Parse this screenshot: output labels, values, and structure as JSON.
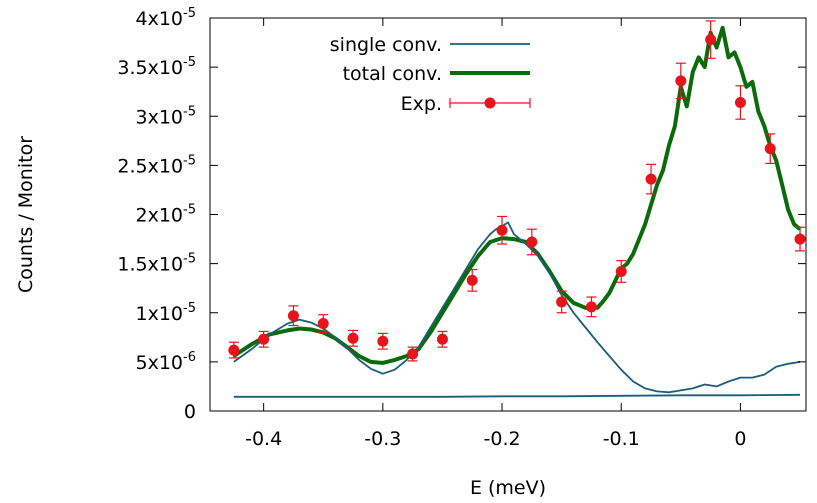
{
  "chart_data": {
    "type": "line",
    "xlabel": "E (meV)",
    "ylabel": "Counts / Monitor",
    "xlim": [
      -0.445,
      0.055
    ],
    "ylim": [
      0,
      4e-05
    ],
    "x_ticks": [
      {
        "value": -0.4,
        "label": "-0.4"
      },
      {
        "value": -0.3,
        "label": "-0.3"
      },
      {
        "value": -0.2,
        "label": "-0.2"
      },
      {
        "value": -0.1,
        "label": "-0.1"
      },
      {
        "value": 0,
        "label": "0"
      }
    ],
    "y_ticks": [
      {
        "value": 0,
        "base": "0",
        "exp": ""
      },
      {
        "value": 5e-06,
        "base": "5x10",
        "exp": "-6"
      },
      {
        "value": 1e-05,
        "base": "1x10",
        "exp": "-5"
      },
      {
        "value": 1.5e-05,
        "base": "1.5x10",
        "exp": "-5"
      },
      {
        "value": 2e-05,
        "base": "2x10",
        "exp": "-5"
      },
      {
        "value": 2.5e-05,
        "base": "2.5x10",
        "exp": "-5"
      },
      {
        "value": 3e-05,
        "base": "3x10",
        "exp": "-5"
      },
      {
        "value": 3.5e-05,
        "base": "3.5x10",
        "exp": "-5"
      },
      {
        "value": 4e-05,
        "base": "4x10",
        "exp": "-5"
      }
    ],
    "grid": false,
    "legend_position": "top-left",
    "series": [
      {
        "name": "single conv.",
        "color": "#1b5e7a",
        "style": "thin-line",
        "x": [
          -0.425,
          -0.41,
          -0.395,
          -0.38,
          -0.37,
          -0.36,
          -0.35,
          -0.34,
          -0.33,
          -0.32,
          -0.31,
          -0.3,
          -0.29,
          -0.28,
          -0.27,
          -0.26,
          -0.25,
          -0.24,
          -0.23,
          -0.22,
          -0.21,
          -0.205,
          -0.2,
          -0.195,
          -0.19,
          -0.18,
          -0.17,
          -0.16,
          -0.15,
          -0.14,
          -0.13,
          -0.12,
          -0.11,
          -0.1,
          -0.09,
          -0.08,
          -0.07,
          -0.06,
          -0.05,
          -0.04,
          -0.03,
          -0.02,
          -0.01,
          0,
          0.01,
          0.02,
          0.03,
          0.04,
          0.05
        ],
        "y": [
          5e-06,
          6.3e-06,
          7.8e-06,
          8.9e-06,
          9.3e-06,
          9e-06,
          8.4e-06,
          7.5e-06,
          6.4e-06,
          5.2e-06,
          4.3e-06,
          3.8e-06,
          4.2e-06,
          5.2e-06,
          6.5e-06,
          8.5e-06,
          1.05e-05,
          1.25e-05,
          1.45e-05,
          1.65e-05,
          1.8e-05,
          1.85e-05,
          1.88e-05,
          1.92e-05,
          1.8e-05,
          1.7e-05,
          1.58e-05,
          1.4e-05,
          1.18e-05,
          1e-05,
          8.5e-06,
          7e-06,
          5.6e-06,
          4.2e-06,
          3e-06,
          2.3e-06,
          2e-06,
          1.9e-06,
          2.1e-06,
          2.3e-06,
          2.7e-06,
          2.5e-06,
          3e-06,
          3.4e-06,
          3.4e-06,
          3.7e-06,
          4.5e-06,
          4.8e-06,
          5e-06
        ]
      },
      {
        "name": "",
        "color": "#1b5e7a",
        "style": "thin-line",
        "x": [
          -0.425,
          -0.4,
          -0.35,
          -0.32,
          -0.3,
          -0.28,
          -0.25,
          -0.2,
          -0.15,
          -0.1,
          -0.05,
          0,
          0.05
        ],
        "y": [
          1.45e-06,
          1.45e-06,
          1.45e-06,
          1.45e-06,
          1.45e-06,
          1.45e-06,
          1.45e-06,
          1.5e-06,
          1.5e-06,
          1.55e-06,
          1.6e-06,
          1.6e-06,
          1.65e-06
        ]
      },
      {
        "name": "total conv.",
        "color": "#0a6b0a",
        "style": "thick-line",
        "x": [
          -0.425,
          -0.41,
          -0.395,
          -0.38,
          -0.37,
          -0.36,
          -0.35,
          -0.34,
          -0.33,
          -0.32,
          -0.31,
          -0.3,
          -0.29,
          -0.28,
          -0.27,
          -0.26,
          -0.25,
          -0.24,
          -0.23,
          -0.22,
          -0.21,
          -0.2,
          -0.19,
          -0.18,
          -0.17,
          -0.16,
          -0.15,
          -0.14,
          -0.13,
          -0.12,
          -0.115,
          -0.11,
          -0.1,
          -0.095,
          -0.09,
          -0.08,
          -0.07,
          -0.065,
          -0.06,
          -0.055,
          -0.05,
          -0.045,
          -0.04,
          -0.035,
          -0.03,
          -0.025,
          -0.02,
          -0.015,
          -0.01,
          -0.005,
          0,
          0.005,
          0.01,
          0.015,
          0.02,
          0.025,
          0.03,
          0.035,
          0.04,
          0.045,
          0.05
        ],
        "y": [
          5.6e-06,
          6.8e-06,
          7.8e-06,
          8.2e-06,
          8.4e-06,
          8.3e-06,
          8e-06,
          7.4e-06,
          6.5e-06,
          5.6e-06,
          5e-06,
          4.9e-06,
          5.2e-06,
          5.6e-06,
          6.3e-06,
          8e-06,
          1e-05,
          1.2e-05,
          1.4e-05,
          1.58e-05,
          1.72e-05,
          1.76e-05,
          1.75e-05,
          1.72e-05,
          1.6e-05,
          1.42e-05,
          1.22e-05,
          1.1e-05,
          1.05e-05,
          1.05e-05,
          1.12e-05,
          1.2e-05,
          1.45e-05,
          1.5e-05,
          1.6e-05,
          1.9e-05,
          2.3e-05,
          2.45e-05,
          2.7e-05,
          2.9e-05,
          3.3e-05,
          3.1e-05,
          3.45e-05,
          3.6e-05,
          3.5e-05,
          3.85e-05,
          3.7e-05,
          3.9e-05,
          3.6e-05,
          3.65e-05,
          3.5e-05,
          3.3e-05,
          3.35e-05,
          3.05e-05,
          2.9e-05,
          2.7e-05,
          2.55e-05,
          2.3e-05,
          2.05e-05,
          1.9e-05,
          1.85e-05
        ]
      }
    ],
    "experimental": {
      "name": "Exp.",
      "color": "#e8141c",
      "x": [
        -0.425,
        -0.4,
        -0.375,
        -0.35,
        -0.325,
        -0.3,
        -0.275,
        -0.25,
        -0.225,
        -0.2,
        -0.175,
        -0.15,
        -0.125,
        -0.1,
        -0.075,
        -0.05,
        -0.025,
        0,
        0.025,
        0.05
      ],
      "y": [
        6.2e-06,
        7.3e-06,
        9.7e-06,
        8.9e-06,
        7.4e-06,
        7.1e-06,
        5.8e-06,
        7.3e-06,
        1.33e-05,
        1.84e-05,
        1.72e-05,
        1.11e-05,
        1.06e-05,
        1.42e-05,
        2.36e-05,
        3.36e-05,
        3.78e-05,
        3.14e-05,
        2.67e-05,
        1.75e-05
      ],
      "yerr": [
        8e-07,
        8e-07,
        1e-06,
        9e-07,
        8e-07,
        8e-07,
        7e-07,
        8e-07,
        1.1e-06,
        1.4e-06,
        1.3e-06,
        1.1e-06,
        1e-06,
        1.1e-06,
        1.5e-06,
        1.8e-06,
        1.9e-06,
        1.7e-06,
        1.5e-06,
        1.2e-06
      ]
    }
  }
}
